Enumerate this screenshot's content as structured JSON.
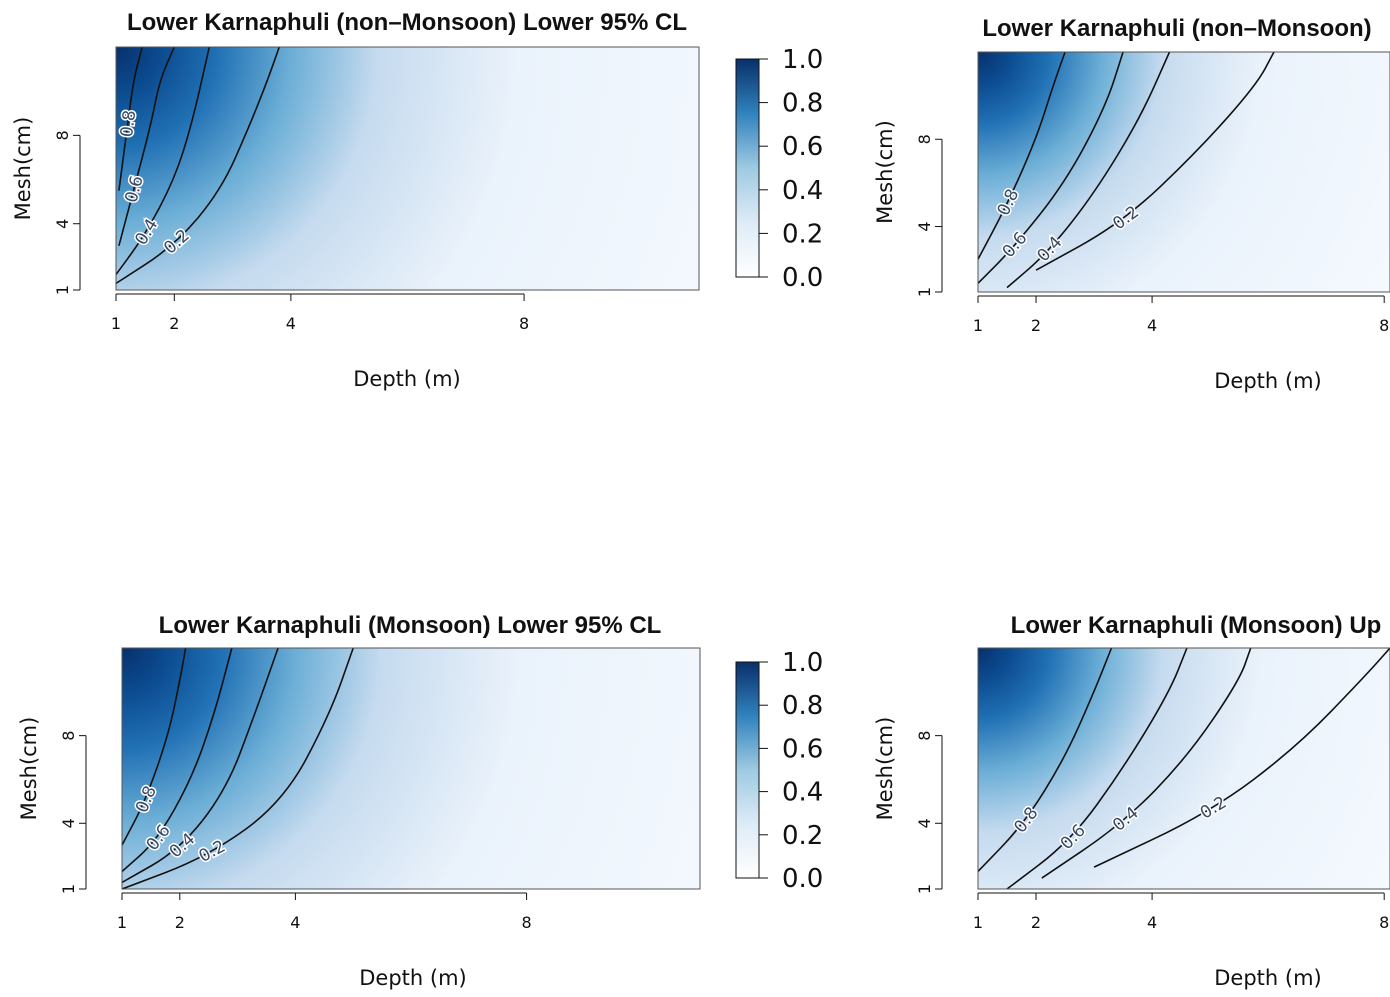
{
  "colors": {
    "low": "#f7fbff",
    "high": "#08306b",
    "contour": "#111111"
  },
  "colorbar_labels": [
    "1.0",
    "0.8",
    "0.6",
    "0.4",
    "0.2",
    "0.0"
  ],
  "chart_data": [
    {
      "type": "heatmap",
      "title": "Lower Karnaphuli (non–Monsoon) Lower 95% CL",
      "xlabel": "Depth (m)",
      "ylabel": "Mesh(cm)",
      "x_ticks": [
        "1",
        "2",
        "4",
        "8"
      ],
      "y_ticks": [
        "1",
        "4",
        "8"
      ],
      "xlim": [
        1,
        11
      ],
      "ylim": [
        1,
        12
      ],
      "colorbar": true,
      "colorscale": "Blues",
      "value_range": [
        0,
        1
      ],
      "contour_levels": [
        "0.8",
        "0.6",
        "0.4",
        "0.2"
      ],
      "contours": [
        {
          "level": 0.8,
          "points": [
            [
              1.05,
              5.5
            ],
            [
              1.2,
              8.5
            ],
            [
              1.3,
              10.5
            ],
            [
              1.45,
              12.0
            ]
          ]
        },
        {
          "level": 0.6,
          "points": [
            [
              1.05,
              3.0
            ],
            [
              1.3,
              5.5
            ],
            [
              1.6,
              8.5
            ],
            [
              1.75,
              10.5
            ],
            [
              2.0,
              12.0
            ]
          ]
        },
        {
          "level": 0.4,
          "points": [
            [
              1.0,
              1.7
            ],
            [
              1.5,
              3.5
            ],
            [
              2.0,
              6.0
            ],
            [
              2.3,
              8.5
            ],
            [
              2.6,
              12.0
            ]
          ]
        },
        {
          "level": 0.2,
          "points": [
            [
              1.0,
              1.3
            ],
            [
              2.0,
              3.0
            ],
            [
              2.8,
              5.5
            ],
            [
              3.3,
              8.5
            ],
            [
              3.6,
              10.5
            ],
            [
              3.8,
              12.0
            ]
          ]
        }
      ]
    },
    {
      "type": "heatmap",
      "title": "Lower Karnaphuli (non–Monsoon)",
      "xlabel": "Depth (m)",
      "ylabel": "Mesh(cm)",
      "x_ticks": [
        "1",
        "2",
        "4",
        "8"
      ],
      "y_ticks": [
        "1",
        "4",
        "8"
      ],
      "xlim": [
        1,
        8.1
      ],
      "ylim": [
        1,
        12
      ],
      "colorbar": false,
      "colorscale": "Blues",
      "value_range": [
        0,
        1
      ],
      "contour_levels": [
        "0.8",
        "0.6",
        "0.4",
        "0.2"
      ],
      "contours": [
        {
          "level": 0.8,
          "points": [
            [
              1.0,
              2.5
            ],
            [
              1.5,
              5.0
            ],
            [
              2.0,
              8.0
            ],
            [
              2.3,
              10.5
            ],
            [
              2.5,
              12.0
            ]
          ]
        },
        {
          "level": 0.6,
          "points": [
            [
              1.0,
              1.4
            ],
            [
              1.6,
              3.0
            ],
            [
              2.5,
              6.0
            ],
            [
              3.2,
              9.5
            ],
            [
              3.5,
              12.0
            ]
          ]
        },
        {
          "level": 0.4,
          "points": [
            [
              1.5,
              1.2
            ],
            [
              2.2,
              2.8
            ],
            [
              3.0,
              5.5
            ],
            [
              3.8,
              9.0
            ],
            [
              4.3,
              12.0
            ]
          ]
        },
        {
          "level": 0.2,
          "points": [
            [
              2.0,
              2.0
            ],
            [
              3.5,
              4.2
            ],
            [
              4.8,
              7.5
            ],
            [
              5.8,
              10.5
            ],
            [
              6.1,
              12.0
            ]
          ]
        }
      ]
    },
    {
      "type": "heatmap",
      "title": "Lower Karnaphuli (Monsoon) Lower 95% CL",
      "xlabel": "Depth (m)",
      "ylabel": "Mesh(cm)",
      "x_ticks": [
        "1",
        "2",
        "4",
        "8"
      ],
      "y_ticks": [
        "1",
        "4",
        "8"
      ],
      "xlim": [
        1,
        11
      ],
      "ylim": [
        1,
        12
      ],
      "colorbar": true,
      "colorscale": "Blues",
      "value_range": [
        0,
        1
      ],
      "contour_levels": [
        "0.8",
        "0.6",
        "0.4",
        "0.2"
      ],
      "contours": [
        {
          "level": 0.8,
          "points": [
            [
              1.0,
              3.0
            ],
            [
              1.4,
              5.0
            ],
            [
              1.8,
              8.0
            ],
            [
              2.0,
              10.5
            ],
            [
              2.1,
              12.0
            ]
          ]
        },
        {
          "level": 0.6,
          "points": [
            [
              1.0,
              1.8
            ],
            [
              1.6,
              3.2
            ],
            [
              2.2,
              6.0
            ],
            [
              2.6,
              9.0
            ],
            [
              2.9,
              12.0
            ]
          ]
        },
        {
          "level": 0.4,
          "points": [
            [
              1.0,
              1.3
            ],
            [
              2.0,
              2.8
            ],
            [
              2.8,
              5.5
            ],
            [
              3.3,
              9.0
            ],
            [
              3.7,
              12.0
            ]
          ]
        },
        {
          "level": 0.2,
          "points": [
            [
              1.0,
              1.0
            ],
            [
              2.5,
              2.5
            ],
            [
              3.8,
              5.0
            ],
            [
              4.6,
              9.0
            ],
            [
              5.0,
              12.0
            ]
          ]
        }
      ]
    },
    {
      "type": "heatmap",
      "title": "Lower Karnaphuli (Monsoon) Up",
      "xlabel": "Depth (m)",
      "ylabel": "Mesh(cm)",
      "x_ticks": [
        "1",
        "2",
        "4",
        "8"
      ],
      "y_ticks": [
        "1",
        "4",
        "8"
      ],
      "xlim": [
        1,
        8.1
      ],
      "ylim": [
        1,
        12
      ],
      "colorbar": false,
      "colorscale": "Blues",
      "value_range": [
        0,
        1
      ],
      "contour_levels": [
        "0.8",
        "0.6",
        "0.4",
        "0.2"
      ],
      "contours": [
        {
          "level": 0.8,
          "points": [
            [
              1.0,
              1.8
            ],
            [
              1.8,
              4.0
            ],
            [
              2.5,
              7.0
            ],
            [
              3.0,
              10.0
            ],
            [
              3.3,
              12.0
            ]
          ]
        },
        {
          "level": 0.6,
          "points": [
            [
              1.5,
              1.0
            ],
            [
              2.6,
              3.2
            ],
            [
              3.5,
              6.5
            ],
            [
              4.3,
              10.0
            ],
            [
              4.6,
              12.0
            ]
          ]
        },
        {
          "level": 0.4,
          "points": [
            [
              2.1,
              1.5
            ],
            [
              3.5,
              4.0
            ],
            [
              4.6,
              7.0
            ],
            [
              5.5,
              10.5
            ],
            [
              5.7,
              12.0
            ]
          ]
        },
        {
          "level": 0.2,
          "points": [
            [
              3.0,
              2.0
            ],
            [
              5.0,
              4.5
            ],
            [
              6.5,
              7.5
            ],
            [
              7.7,
              10.8
            ],
            [
              8.1,
              12.0
            ]
          ]
        }
      ]
    }
  ]
}
